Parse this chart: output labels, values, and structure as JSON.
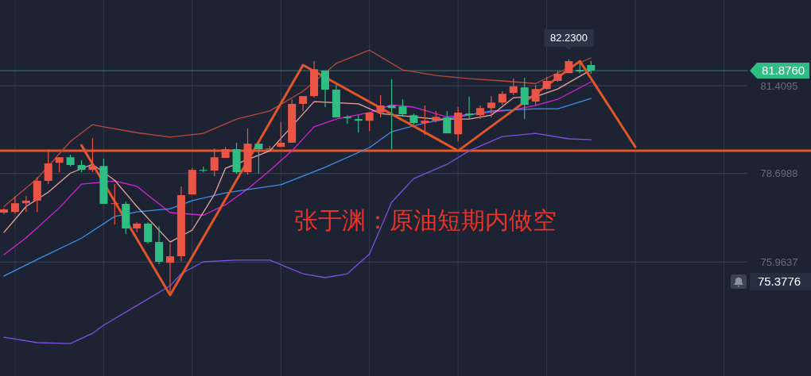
{
  "chart_data": {
    "type": "candlestick",
    "title": "张于渊：原油短期内做空",
    "categories": [
      null,
      null,
      null,
      null,
      null,
      null,
      null,
      null,
      null,
      null,
      null,
      null,
      null,
      null,
      null,
      null,
      null,
      null,
      null,
      null,
      null,
      null,
      null,
      null,
      null,
      null,
      null,
      null,
      null,
      null,
      null,
      null,
      null,
      null,
      null,
      null,
      null,
      null,
      null,
      null,
      null,
      null,
      null,
      null,
      null,
      null,
      null,
      null,
      null,
      null,
      null,
      null,
      null,
      null,
      null,
      null,
      null,
      null,
      null,
      null,
      null,
      null,
      null,
      null,
      null,
      null,
      null
    ],
    "ohlc": [
      [
        77.49,
        77.63,
        77.44,
        77.59
      ],
      [
        77.51,
        77.98,
        77.46,
        77.78
      ],
      [
        77.78,
        78.0,
        77.51,
        77.86
      ],
      [
        77.86,
        78.59,
        77.51,
        78.47
      ],
      [
        78.47,
        79.45,
        78.37,
        79.01
      ],
      [
        79.03,
        79.2,
        78.74,
        79.2
      ],
      [
        79.2,
        79.28,
        78.91,
        78.96
      ],
      [
        78.96,
        79.11,
        78.74,
        78.81
      ],
      [
        78.81,
        79.79,
        78.74,
        78.93
      ],
      [
        78.93,
        79.15,
        77.76,
        77.76
      ],
      [
        77.76,
        78.37,
        77.12,
        77.78
      ],
      [
        77.76,
        77.83,
        76.83,
        77.0
      ],
      [
        77.0,
        77.19,
        76.88,
        77.15
      ],
      [
        77.15,
        77.19,
        76.53,
        76.58
      ],
      [
        76.58,
        77.07,
        75.89,
        75.97
      ],
      [
        75.94,
        76.53,
        74.94,
        76.14
      ],
      [
        76.14,
        78.3,
        75.99,
        78.03
      ],
      [
        78.05,
        78.86,
        78.05,
        78.81
      ],
      [
        78.81,
        78.91,
        78.74,
        78.79
      ],
      [
        78.79,
        79.47,
        78.62,
        79.2
      ],
      [
        79.18,
        79.52,
        79.18,
        79.45
      ],
      [
        79.45,
        79.65,
        78.69,
        78.74
      ],
      [
        78.74,
        80.09,
        78.66,
        79.62
      ],
      [
        79.62,
        79.62,
        78.69,
        79.45
      ],
      [
        79.45,
        79.55,
        79.42,
        79.47
      ],
      [
        79.52,
        80.28,
        79.52,
        79.65
      ],
      [
        79.65,
        80.99,
        79.65,
        80.85
      ],
      [
        80.85,
        81.09,
        80.63,
        81.09
      ],
      [
        81.09,
        82.17,
        81.04,
        81.92
      ],
      [
        81.88,
        81.88,
        80.75,
        81.29
      ],
      [
        81.29,
        81.43,
        80.43,
        80.43
      ],
      [
        80.45,
        80.5,
        80.23,
        80.41
      ],
      [
        80.38,
        80.5,
        79.96,
        80.33
      ],
      [
        80.33,
        80.58,
        80.01,
        80.58
      ],
      [
        80.58,
        81.12,
        80.43,
        80.8
      ],
      [
        80.8,
        81.61,
        79.45,
        80.72
      ],
      [
        80.77,
        80.99,
        80.45,
        80.53
      ],
      [
        80.5,
        80.55,
        80.21,
        80.26
      ],
      [
        80.26,
        80.8,
        79.89,
        80.33
      ],
      [
        80.33,
        80.63,
        80.28,
        80.45
      ],
      [
        80.43,
        80.63,
        79.94,
        79.94
      ],
      [
        79.91,
        80.75,
        79.69,
        80.58
      ],
      [
        80.55,
        81.07,
        80.38,
        80.5
      ],
      [
        80.5,
        80.8,
        80.38,
        80.72
      ],
      [
        80.72,
        81.09,
        80.43,
        80.89
      ],
      [
        80.89,
        81.24,
        80.82,
        81.16
      ],
      [
        81.19,
        81.63,
        81.12,
        81.39
      ],
      [
        81.36,
        81.66,
        80.38,
        80.82
      ],
      [
        80.92,
        81.43,
        80.8,
        81.31
      ],
      [
        81.31,
        81.68,
        81.29,
        81.56
      ],
      [
        81.56,
        81.88,
        81.53,
        81.78
      ],
      [
        81.8,
        82.23,
        81.8,
        82.17
      ],
      [
        81.9,
        82.1,
        81.8,
        81.85
      ],
      [
        82.05,
        82.17,
        81.78,
        81.88
      ],
      null,
      null,
      null,
      null,
      null,
      null,
      null,
      null,
      null,
      null,
      null,
      null,
      null
    ],
    "colors": [
      "#eb5545",
      "#eb5545",
      "#eb5545",
      "#eb5545",
      "#eb5545",
      "#eb5545",
      "#2ebd85",
      "#2ebd85",
      "#eb5545",
      "#2ebd85",
      "#eb5545",
      "#2ebd85",
      "#eb5545",
      "#2ebd85",
      "#2ebd85",
      "#eb5545",
      "#eb5545",
      "#eb5545",
      "#2ebd85",
      "#eb5545",
      "#eb5545",
      "#2ebd85",
      "#eb5545",
      "#2ebd85",
      "#eb5545",
      "#eb5545",
      "#eb5545",
      "#eb5545",
      "#eb5545",
      "#2ebd85",
      "#2ebd85",
      "#2ebd85",
      "#2ebd85",
      "#eb5545",
      "#eb5545",
      "#2ebd85",
      "#2ebd85",
      "#2ebd85",
      "#eb5545",
      "#eb5545",
      "#2ebd85",
      "#eb5545",
      "#2ebd85",
      "#eb5545",
      "#eb5545",
      "#eb5545",
      "#eb5545",
      "#2ebd85",
      "#eb5545",
      "#eb5545",
      "#eb5545",
      "#eb5545",
      "#2ebd85",
      "#2ebd85",
      null,
      null,
      null,
      null,
      null,
      null,
      null,
      null,
      null,
      null,
      null,
      null,
      null
    ],
    "series": [
      {
        "type": "line",
        "color": "#b8483c",
        "values": [
          77.68,
          null,
          null,
          78.54,
          null,
          null,
          79.69,
          null,
          80.21,
          80.14,
          null,
          null,
          79.96,
          null,
          null,
          79.82,
          null,
          null,
          79.94,
          null,
          null,
          80.38,
          null,
          null,
          80.63,
          null,
          null,
          81.24,
          null,
          null,
          82.1,
          null,
          null,
          82.51,
          null,
          null,
          81.9,
          null,
          null,
          81.73,
          null,
          null,
          81.63,
          null,
          null,
          81.56,
          null,
          null,
          81.48,
          null,
          null,
          81.97,
          null,
          82.27,
          null,
          null,
          null,
          null,
          null,
          null,
          null,
          null,
          null,
          null,
          null,
          null,
          null
        ]
      },
      {
        "type": "line",
        "color": "#7b4fe0",
        "values": [
          73.64,
          null,
          null,
          73.47,
          null,
          null,
          73.44,
          null,
          73.76,
          74.01,
          null,
          null,
          74.62,
          null,
          null,
          75.23,
          75.6,
          null,
          75.97,
          null,
          null,
          76.02,
          null,
          null,
          76.02,
          null,
          null,
          75.6,
          null,
          75.48,
          null,
          75.6,
          null,
          76.21,
          null,
          77.81,
          null,
          78.54,
          null,
          null,
          78.98,
          null,
          79.4,
          null,
          null,
          79.84,
          null,
          null,
          79.94,
          null,
          null,
          79.77,
          null,
          79.74,
          null,
          null,
          null,
          null,
          null,
          null,
          null,
          null,
          null,
          null,
          null,
          null,
          null
        ]
      },
      {
        "type": "line",
        "color": "#d224d4",
        "values": [
          76.19,
          null,
          76.71,
          null,
          null,
          77.64,
          null,
          78.37,
          null,
          null,
          78.47,
          null,
          78.3,
          null,
          null,
          77.49,
          null,
          null,
          77.41,
          null,
          77.73,
          null,
          78.22,
          null,
          78.79,
          null,
          79.4,
          null,
          80.14,
          null,
          80.38,
          null,
          null,
          80.58,
          null,
          80.82,
          null,
          80.75,
          null,
          null,
          80.45,
          null,
          null,
          null,
          null,
          null,
          80.67,
          null,
          80.8,
          null,
          80.99,
          null,
          null,
          81.53,
          null,
          null,
          null,
          null,
          null,
          null,
          null,
          null,
          null,
          null,
          null,
          null,
          null
        ]
      },
      {
        "type": "line",
        "color": "#3d8fe8",
        "values": [
          75.53,
          null,
          null,
          76.04,
          null,
          null,
          null,
          76.7,
          null,
          null,
          77.37,
          null,
          77.51,
          null,
          null,
          77.61,
          null,
          77.86,
          null,
          null,
          78.1,
          null,
          null,
          null,
          78.3,
          78.35,
          null,
          null,
          null,
          78.89,
          null,
          null,
          null,
          79.5,
          null,
          79.99,
          null,
          null,
          80.26,
          null,
          null,
          null,
          null,
          null,
          80.63,
          null,
          null,
          null,
          80.7,
          null,
          80.7,
          null,
          null,
          81.02,
          null,
          null,
          null,
          null,
          null,
          null,
          null,
          null,
          null,
          null,
          null,
          null,
          null
        ]
      },
      {
        "type": "line",
        "color": "#e8a69c",
        "values": [
          76.88,
          null,
          77.68,
          null,
          78.12,
          null,
          78.71,
          null,
          78.98,
          null,
          78.49,
          null,
          77.68,
          null,
          null,
          76.58,
          null,
          76.95,
          null,
          78.05,
          78.86,
          null,
          null,
          null,
          79.4,
          null,
          null,
          null,
          80.92,
          null,
          null,
          null,
          80.85,
          null,
          80.55,
          null,
          null,
          null,
          null,
          80.38,
          null,
          null,
          80.38,
          null,
          80.5,
          null,
          81.04,
          null,
          81.07,
          null,
          81.31,
          null,
          null,
          81.9,
          null,
          null,
          null,
          null,
          null,
          null,
          null,
          null,
          null,
          null,
          null,
          null,
          null
        ]
      },
      {
        "type": "line",
        "color": "#e0552a",
        "values": [
          null,
          null,
          null,
          null,
          null,
          null,
          null,
          79.57,
          null,
          null,
          null,
          null,
          null,
          null,
          null,
          74.94,
          null,
          null,
          null,
          null,
          null,
          null,
          null,
          null,
          null,
          null,
          null,
          82.05,
          null,
          null,
          null,
          null,
          null,
          null,
          null,
          null,
          null,
          null,
          null,
          null,
          null,
          79.4,
          null,
          null,
          null,
          null,
          null,
          null,
          null,
          null,
          null,
          null,
          82.17,
          null,
          null,
          null,
          null,
          79.52,
          null,
          null,
          null,
          null,
          null,
          null,
          null,
          null,
          null
        ]
      }
    ],
    "ylim": [
      72.44,
      84.06
    ],
    "yticks": [
      75.9637,
      78.6988,
      81.4095
    ],
    "tick_labels": "y",
    "grid": true,
    "ref_lines": [
      {
        "axis": "y",
        "value": 79.4,
        "color": "#e0552a"
      },
      {
        "axis": "y",
        "value": 81.876,
        "label": "81.8760",
        "color": "#2ebd85"
      }
    ],
    "annotations": [
      {
        "text": "82.2300",
        "y": 82.23
      },
      "75.3776"
    ]
  }
}
